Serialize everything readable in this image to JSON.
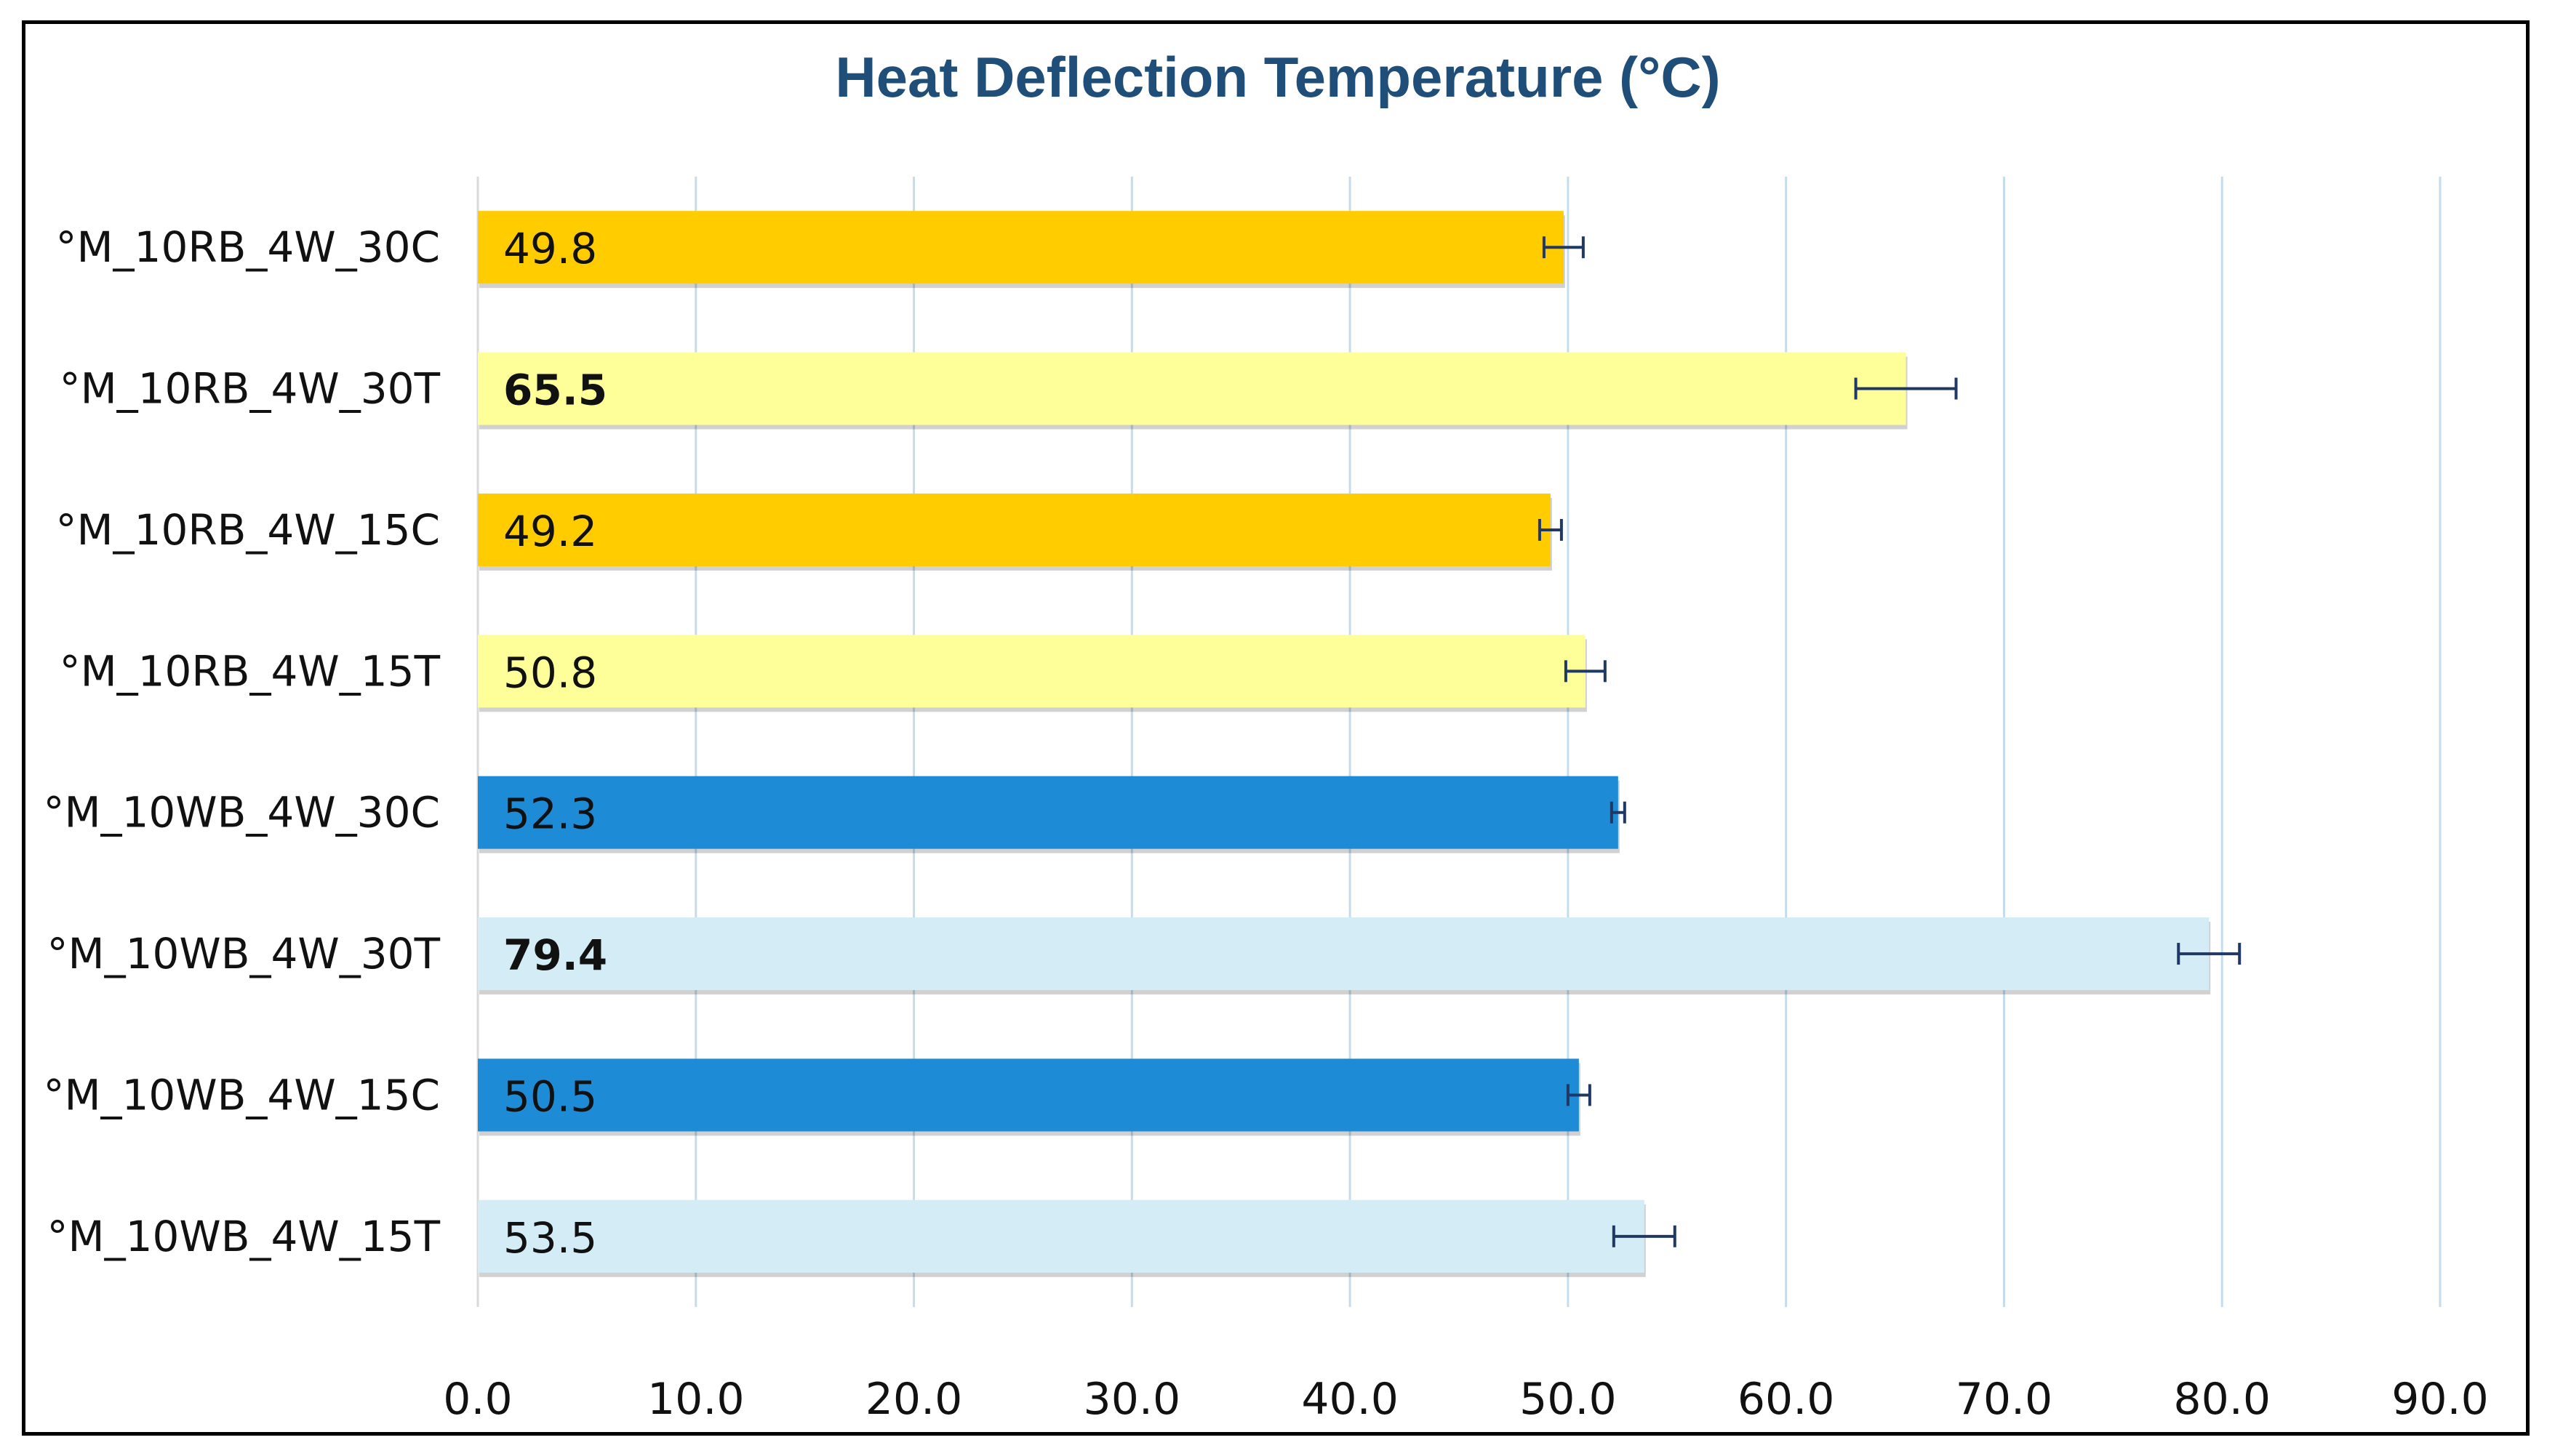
{
  "chart_data": {
    "type": "bar",
    "orientation": "horizontal",
    "title": "Heat Deflection Temperature (°C)",
    "xlabel": "",
    "ylabel": "",
    "xlim": [
      0,
      90
    ],
    "x_ticks": [
      "0.0",
      "10.0",
      "20.0",
      "30.0",
      "40.0",
      "50.0",
      "60.0",
      "70.0",
      "80.0",
      "90.0"
    ],
    "grid": "vertical",
    "legend": "none",
    "categories": [
      "°M_10RB_4W_30C",
      "°M_10RB_4W_30T",
      "°M_10RB_4W_15C",
      "°M_10RB_4W_15T",
      "°M_10WB_4W_30C",
      "°M_10WB_4W_30T",
      "°M_10WB_4W_15C",
      "°M_10WB_4W_15T"
    ],
    "values": [
      49.8,
      65.5,
      49.2,
      50.8,
      52.3,
      79.4,
      50.5,
      53.5
    ],
    "value_labels": [
      "49.8",
      "65.5",
      "49.2",
      "50.8",
      "52.3",
      "79.4",
      "50.5",
      "53.5"
    ],
    "bold_labels": [
      false,
      true,
      false,
      false,
      false,
      true,
      false,
      false
    ],
    "error": [
      0.9,
      2.3,
      0.5,
      0.9,
      0.3,
      1.4,
      0.5,
      1.4
    ],
    "bar_colors": [
      "#ffcc00",
      "#ffff99",
      "#ffcc00",
      "#ffff99",
      "#1e8bd6",
      "#d3ecf5",
      "#1e8bd6",
      "#d3ecf5"
    ]
  },
  "colors": {
    "title": "#1f4e79",
    "grid": "#c5dcec",
    "axis_text": "#111111",
    "error_bar": "#1f3864"
  }
}
